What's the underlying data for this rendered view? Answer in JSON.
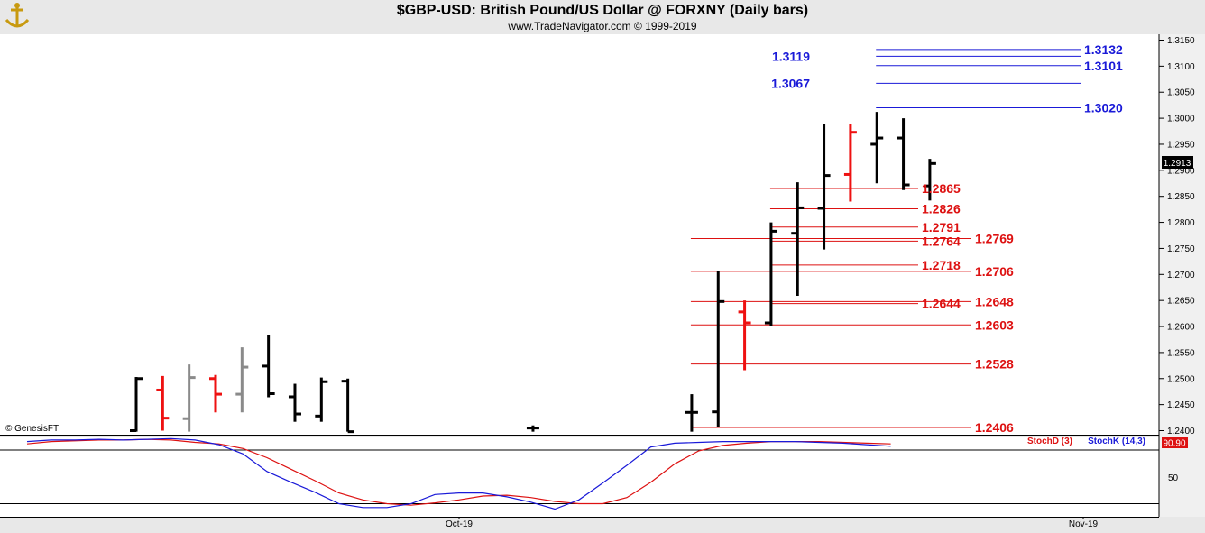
{
  "header": {
    "title": "$GBP-USD:  British Pound/US Dollar @ FORXNY  (Daily bars)",
    "subtitle": "www.TradeNavigator.com © 1999-2019"
  },
  "watermark": "© GenesisFT",
  "colors": {
    "bar_up": "#000000",
    "bar_down": "#ee1111",
    "bar_neutral": "#8a8a8a",
    "resistance": "#1a1ad8",
    "support": "#dd1111",
    "stoch_k": "#1a1ad8",
    "stoch_d": "#dd1111",
    "last_price_bg": "#000000",
    "stoch_value_bg": "#dd1111"
  },
  "chart_data": [
    {
      "type": "ohlc",
      "name": "price",
      "ylim": [
        1.2398,
        1.3165
      ],
      "y_ticks": [
        "1.2400",
        "1.2450",
        "1.2500",
        "1.2550",
        "1.2600",
        "1.2650",
        "1.2700",
        "1.2750",
        "1.2800",
        "1.2850",
        "1.2900",
        "1.2950",
        "1.3000",
        "1.3050",
        "1.3100",
        "1.3150"
      ],
      "x_labels": [
        "Oct-19",
        "Nov-19"
      ],
      "last_price": "1.2913",
      "bars": [
        {
          "i": 0,
          "o": 1.24,
          "h": 1.2503,
          "l": 1.2398,
          "c": 1.25,
          "color": "black"
        },
        {
          "i": 1,
          "o": 1.2478,
          "h": 1.2505,
          "l": 1.24,
          "c": 1.2424,
          "color": "red"
        },
        {
          "i": 2,
          "o": 1.2423,
          "h": 1.2527,
          "l": 1.2398,
          "c": 1.2502,
          "color": "gray"
        },
        {
          "i": 3,
          "o": 1.25,
          "h": 1.2507,
          "l": 1.2435,
          "c": 1.247,
          "color": "red"
        },
        {
          "i": 4,
          "o": 1.247,
          "h": 1.256,
          "l": 1.2435,
          "c": 1.2522,
          "color": "gray"
        },
        {
          "i": 5,
          "o": 1.2524,
          "h": 1.2584,
          "l": 1.2464,
          "c": 1.2471,
          "color": "black"
        },
        {
          "i": 6,
          "o": 1.2465,
          "h": 1.249,
          "l": 1.2417,
          "c": 1.2432,
          "color": "black"
        },
        {
          "i": 7,
          "o": 1.2428,
          "h": 1.2502,
          "l": 1.2417,
          "c": 1.2494,
          "color": "black"
        },
        {
          "i": 8,
          "o": 1.2495,
          "h": 1.25,
          "l": 1.2398,
          "c": 1.2398,
          "color": "black"
        },
        {
          "i": 15,
          "o": 1.2405,
          "h": 1.241,
          "l": 1.2398,
          "c": 1.2405,
          "color": "black"
        },
        {
          "i": 21,
          "o": 1.2435,
          "h": 1.247,
          "l": 1.2398,
          "c": 1.2435,
          "color": "black"
        },
        {
          "i": 22,
          "o": 1.2436,
          "h": 1.2706,
          "l": 1.2406,
          "c": 1.2648,
          "color": "black"
        },
        {
          "i": 23,
          "o": 1.2628,
          "h": 1.265,
          "l": 1.2516,
          "c": 1.2607,
          "color": "red"
        },
        {
          "i": 24,
          "o": 1.2607,
          "h": 1.28,
          "l": 1.26,
          "c": 1.2783,
          "color": "black"
        },
        {
          "i": 25,
          "o": 1.2779,
          "h": 1.2877,
          "l": 1.2659,
          "c": 1.2828,
          "color": "black"
        },
        {
          "i": 26,
          "o": 1.2827,
          "h": 1.2988,
          "l": 1.2748,
          "c": 1.289,
          "color": "black"
        },
        {
          "i": 27,
          "o": 1.2892,
          "h": 1.2989,
          "l": 1.284,
          "c": 1.2973,
          "color": "red"
        },
        {
          "i": 28,
          "o": 1.295,
          "h": 1.3012,
          "l": 1.2875,
          "c": 1.2962,
          "color": "black"
        },
        {
          "i": 29,
          "o": 1.2962,
          "h": 1.3,
          "l": 1.2862,
          "c": 1.2872,
          "color": "black"
        },
        {
          "i": 30,
          "o": 1.287,
          "h": 1.2922,
          "l": 1.2842,
          "c": 1.2913,
          "color": "black"
        }
      ],
      "levels": [
        {
          "value": 1.3132,
          "label": "1.3132",
          "kind": "resistance",
          "from_bar": 28,
          "label_pos": "right"
        },
        {
          "value": 1.3119,
          "label": "1.3119",
          "kind": "resistance",
          "from_bar": 28,
          "label_pos": "left"
        },
        {
          "value": 1.3101,
          "label": "1.3101",
          "kind": "resistance",
          "from_bar": 28,
          "label_pos": "right"
        },
        {
          "value": 1.3067,
          "label": "1.3067",
          "kind": "resistance",
          "from_bar": 28,
          "label_pos": "left"
        },
        {
          "value": 1.302,
          "label": "1.3020",
          "kind": "resistance",
          "from_bar": 28,
          "label_pos": "right"
        },
        {
          "value": 1.2865,
          "label": "1.2865",
          "kind": "support",
          "from_bar": 24,
          "label_pos": "mid"
        },
        {
          "value": 1.2826,
          "label": "1.2826",
          "kind": "support",
          "from_bar": 24,
          "label_pos": "mid"
        },
        {
          "value": 1.2791,
          "label": "1.2791",
          "kind": "support",
          "from_bar": 24,
          "label_pos": "mid"
        },
        {
          "value": 1.2769,
          "label": "1.2769",
          "kind": "support",
          "from_bar": 21,
          "label_pos": "right"
        },
        {
          "value": 1.2764,
          "label": "1.2764",
          "kind": "support",
          "from_bar": 24,
          "label_pos": "mid"
        },
        {
          "value": 1.2718,
          "label": "1.2718",
          "kind": "support",
          "from_bar": 24,
          "label_pos": "mid"
        },
        {
          "value": 1.2706,
          "label": "1.2706",
          "kind": "support",
          "from_bar": 21,
          "label_pos": "right"
        },
        {
          "value": 1.2648,
          "label": "1.2648",
          "kind": "support",
          "from_bar": 21,
          "label_pos": "right"
        },
        {
          "value": 1.2644,
          "label": "1.2644",
          "kind": "support",
          "from_bar": 24,
          "label_pos": "mid"
        },
        {
          "value": 1.2603,
          "label": "1.2603",
          "kind": "support",
          "from_bar": 21,
          "label_pos": "right"
        },
        {
          "value": 1.2528,
          "label": "1.2528",
          "kind": "support",
          "from_bar": 21,
          "label_pos": "right"
        },
        {
          "value": 1.2406,
          "label": "1.2406",
          "kind": "support",
          "from_bar": 21,
          "label_pos": "right"
        }
      ]
    },
    {
      "type": "line",
      "name": "stochastic",
      "ylim": [
        0,
        100
      ],
      "y_ticks": [
        "50"
      ],
      "value_label": "90.90",
      "legend": [
        "StochD (3)",
        "StochK (14,3)"
      ],
      "series": [
        {
          "name": "StochD (3)",
          "color": "red",
          "values": [
            88,
            91,
            92,
            93,
            93,
            94,
            93,
            90,
            88,
            82,
            70,
            55,
            40,
            24,
            15,
            10,
            8,
            11,
            15,
            20,
            21,
            18,
            13,
            10,
            10,
            18,
            38,
            62,
            79,
            86,
            89,
            91,
            91,
            91,
            90,
            89,
            88
          ]
        },
        {
          "name": "StochK (14,3)",
          "color": "blue",
          "values": [
            91,
            93,
            93,
            94,
            93,
            94,
            95,
            93,
            87,
            75,
            52,
            38,
            25,
            10,
            5,
            5,
            10,
            22,
            24,
            24,
            19,
            12,
            3,
            15,
            37,
            60,
            84,
            89,
            90,
            91,
            91,
            91,
            91,
            90,
            89,
            87,
            85
          ]
        }
      ]
    }
  ]
}
